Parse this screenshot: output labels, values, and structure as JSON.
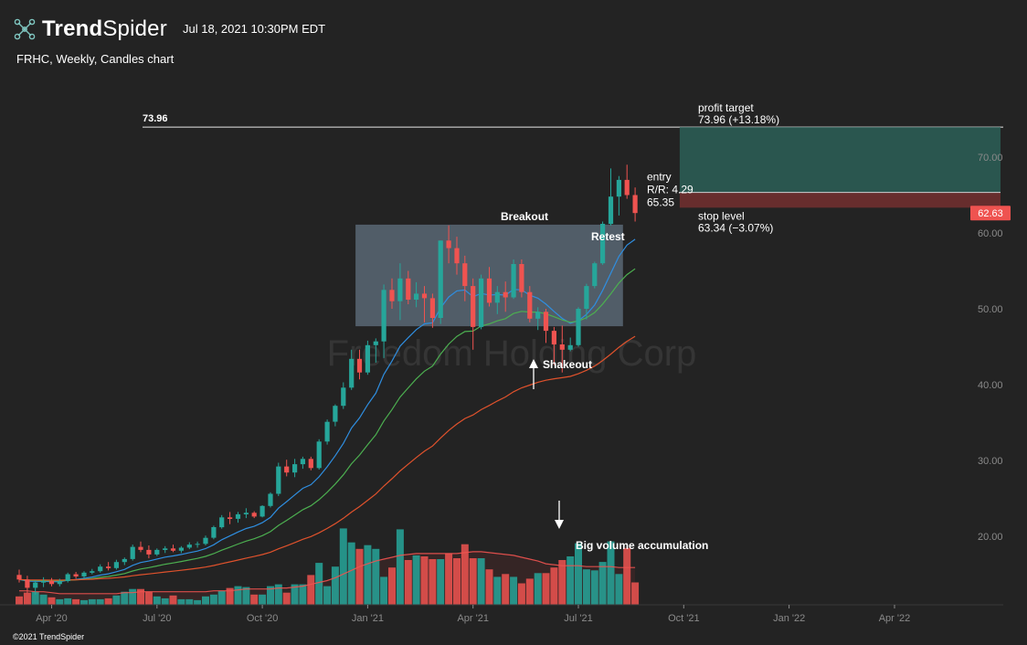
{
  "header": {
    "logo_icon": "network-nodes-icon",
    "brand_trend": "Trend",
    "brand_spider": "Spider",
    "timestamp": "Jul 18, 2021 10:30PM EDT",
    "subtitle": "FRHC, Weekly, Candles chart"
  },
  "watermark": "Freedom Holding Corp",
  "footer": {
    "copyright": "©2021 TrendSpider"
  },
  "colors": {
    "background": "#232323",
    "up": "#26a69a",
    "down": "#ef5350",
    "ema_fast": "#2f8ee0",
    "ema_mid": "#4caf50",
    "ema_slow": "#e0522c",
    "zone": "#8aa4bc",
    "profit_zone": "#2b5f57",
    "stop_zone": "#6b2e2e"
  },
  "chart_data": {
    "type": "candlestick",
    "symbol": "FRHC",
    "interval": "Weekly",
    "y_axis": {
      "ylim": [
        11.5,
        80
      ],
      "ticks": [
        "20.00",
        "30.00",
        "40.00",
        "50.00",
        "60.00",
        "70.00"
      ],
      "tick_values": [
        20,
        30,
        40,
        50,
        60,
        70
      ],
      "position": "right"
    },
    "x_axis": {
      "first_week": "2020-03-02",
      "last_visible_week": "2022-06-06",
      "tick_labels": [
        "Apr '20",
        "Jul '20",
        "Oct '20",
        "Jan '21",
        "Apr '21",
        "Jul '21",
        "Oct '21",
        "Jan '22",
        "Apr '22"
      ],
      "tick_weeks": [
        4,
        17,
        30,
        43,
        56,
        69,
        82,
        95,
        108
      ]
    },
    "candles": [
      {
        "o": 14.9,
        "h": 15.6,
        "l": 13.9,
        "c": 14.3
      },
      {
        "o": 14.3,
        "h": 14.8,
        "l": 12.5,
        "c": 13.2
      },
      {
        "o": 13.2,
        "h": 14.2,
        "l": 12.3,
        "c": 13.9
      },
      {
        "o": 13.9,
        "h": 14.6,
        "l": 13.3,
        "c": 14.1
      },
      {
        "o": 14.1,
        "h": 14.5,
        "l": 13.4,
        "c": 13.7
      },
      {
        "o": 13.7,
        "h": 14.4,
        "l": 13.4,
        "c": 14.1
      },
      {
        "o": 14.1,
        "h": 15.2,
        "l": 13.9,
        "c": 15.0
      },
      {
        "o": 15.0,
        "h": 15.3,
        "l": 14.4,
        "c": 14.7
      },
      {
        "o": 14.7,
        "h": 15.4,
        "l": 14.5,
        "c": 15.2
      },
      {
        "o": 15.2,
        "h": 15.7,
        "l": 15.0,
        "c": 15.4
      },
      {
        "o": 15.4,
        "h": 16.3,
        "l": 15.2,
        "c": 16.0
      },
      {
        "o": 16.0,
        "h": 16.6,
        "l": 15.5,
        "c": 15.8
      },
      {
        "o": 15.8,
        "h": 16.9,
        "l": 15.6,
        "c": 16.6
      },
      {
        "o": 16.6,
        "h": 17.2,
        "l": 16.2,
        "c": 17.0
      },
      {
        "o": 17.0,
        "h": 18.9,
        "l": 16.8,
        "c": 18.6
      },
      {
        "o": 18.6,
        "h": 19.3,
        "l": 17.9,
        "c": 18.2
      },
      {
        "o": 18.2,
        "h": 18.8,
        "l": 17.1,
        "c": 17.6
      },
      {
        "o": 17.6,
        "h": 18.4,
        "l": 17.4,
        "c": 18.2
      },
      {
        "o": 18.2,
        "h": 18.7,
        "l": 17.8,
        "c": 18.4
      },
      {
        "o": 18.4,
        "h": 18.9,
        "l": 17.9,
        "c": 18.1
      },
      {
        "o": 18.1,
        "h": 18.7,
        "l": 17.8,
        "c": 18.5
      },
      {
        "o": 18.5,
        "h": 19.2,
        "l": 18.3,
        "c": 18.9
      },
      {
        "o": 18.9,
        "h": 19.3,
        "l": 18.5,
        "c": 19.0
      },
      {
        "o": 19.0,
        "h": 20.1,
        "l": 18.8,
        "c": 19.8
      },
      {
        "o": 19.8,
        "h": 21.4,
        "l": 19.6,
        "c": 21.2
      },
      {
        "o": 21.2,
        "h": 22.8,
        "l": 21.0,
        "c": 22.5
      },
      {
        "o": 22.5,
        "h": 23.2,
        "l": 21.6,
        "c": 22.3
      },
      {
        "o": 22.3,
        "h": 23.2,
        "l": 21.8,
        "c": 22.9
      },
      {
        "o": 22.9,
        "h": 23.7,
        "l": 22.4,
        "c": 23.1
      },
      {
        "o": 23.1,
        "h": 23.3,
        "l": 22.4,
        "c": 22.6
      },
      {
        "o": 22.6,
        "h": 24.1,
        "l": 22.5,
        "c": 24.0
      },
      {
        "o": 24.0,
        "h": 25.8,
        "l": 23.8,
        "c": 25.6
      },
      {
        "o": 25.6,
        "h": 29.7,
        "l": 25.3,
        "c": 29.2
      },
      {
        "o": 29.2,
        "h": 30.1,
        "l": 27.9,
        "c": 28.4
      },
      {
        "o": 28.4,
        "h": 30.2,
        "l": 27.8,
        "c": 29.5
      },
      {
        "o": 29.5,
        "h": 30.5,
        "l": 28.9,
        "c": 30.2
      },
      {
        "o": 30.2,
        "h": 30.5,
        "l": 28.7,
        "c": 29.0
      },
      {
        "o": 29.0,
        "h": 32.8,
        "l": 28.8,
        "c": 32.5
      },
      {
        "o": 32.5,
        "h": 35.4,
        "l": 32.1,
        "c": 35.1
      },
      {
        "o": 35.1,
        "h": 37.4,
        "l": 34.5,
        "c": 37.2
      },
      {
        "o": 37.2,
        "h": 40.3,
        "l": 36.8,
        "c": 39.6
      },
      {
        "o": 39.6,
        "h": 44.6,
        "l": 39.3,
        "c": 43.4
      },
      {
        "o": 43.4,
        "h": 44.6,
        "l": 40.7,
        "c": 41.6
      },
      {
        "o": 41.6,
        "h": 45.8,
        "l": 41.3,
        "c": 45.2
      },
      {
        "o": 45.2,
        "h": 46.1,
        "l": 42.9,
        "c": 45.7
      },
      {
        "o": 45.7,
        "h": 53.2,
        "l": 43.5,
        "c": 52.5
      },
      {
        "o": 52.5,
        "h": 54.0,
        "l": 50.0,
        "c": 51.0
      },
      {
        "o": 51.0,
        "h": 56.0,
        "l": 48.5,
        "c": 54.0
      },
      {
        "o": 54.0,
        "h": 55.0,
        "l": 50.6,
        "c": 51.2
      },
      {
        "o": 51.2,
        "h": 53.5,
        "l": 50.2,
        "c": 52.0
      },
      {
        "o": 52.0,
        "h": 53.0,
        "l": 48.2,
        "c": 51.4
      },
      {
        "o": 51.4,
        "h": 52.0,
        "l": 47.5,
        "c": 48.8
      },
      {
        "o": 48.8,
        "h": 59.0,
        "l": 48.0,
        "c": 59.0
      },
      {
        "o": 59.0,
        "h": 61.0,
        "l": 56.0,
        "c": 58.0
      },
      {
        "o": 58.0,
        "h": 59.5,
        "l": 54.5,
        "c": 56.0
      },
      {
        "o": 56.0,
        "h": 57.0,
        "l": 51.0,
        "c": 53.0
      },
      {
        "o": 53.0,
        "h": 54.0,
        "l": 44.6,
        "c": 47.6
      },
      {
        "o": 47.6,
        "h": 54.5,
        "l": 47.3,
        "c": 54.0
      },
      {
        "o": 54.0,
        "h": 55.5,
        "l": 50.3,
        "c": 50.8
      },
      {
        "o": 50.8,
        "h": 53.0,
        "l": 49.3,
        "c": 52.2
      },
      {
        "o": 52.2,
        "h": 53.6,
        "l": 49.6,
        "c": 51.5
      },
      {
        "o": 51.5,
        "h": 56.5,
        "l": 51.3,
        "c": 55.9
      },
      {
        "o": 55.9,
        "h": 56.5,
        "l": 51.5,
        "c": 52.2
      },
      {
        "o": 52.2,
        "h": 53.0,
        "l": 48.2,
        "c": 48.7
      },
      {
        "o": 48.7,
        "h": 50.2,
        "l": 47.2,
        "c": 49.6
      },
      {
        "o": 49.6,
        "h": 50.0,
        "l": 45.5,
        "c": 47.1
      },
      {
        "o": 47.1,
        "h": 47.6,
        "l": 42.6,
        "c": 45.3
      },
      {
        "o": 45.3,
        "h": 47.8,
        "l": 41.6,
        "c": 44.6
      },
      {
        "o": 44.6,
        "h": 46.2,
        "l": 44.4,
        "c": 45.2
      },
      {
        "o": 45.2,
        "h": 50.2,
        "l": 45.0,
        "c": 50.0
      },
      {
        "o": 50.0,
        "h": 53.3,
        "l": 48.6,
        "c": 53.0
      },
      {
        "o": 53.0,
        "h": 56.2,
        "l": 52.7,
        "c": 56.0
      },
      {
        "o": 56.0,
        "h": 61.5,
        "l": 55.8,
        "c": 61.2
      },
      {
        "o": 61.2,
        "h": 68.5,
        "l": 61.0,
        "c": 64.8
      },
      {
        "o": 64.8,
        "h": 67.5,
        "l": 62.3,
        "c": 67.0
      },
      {
        "o": 67.0,
        "h": 69.0,
        "l": 64.5,
        "c": 65.0
      },
      {
        "o": 65.0,
        "h": 66.0,
        "l": 61.5,
        "c": 62.63
      }
    ],
    "volume_levels": [
      0.09,
      0.13,
      0.14,
      0.11,
      0.08,
      0.06,
      0.07,
      0.06,
      0.05,
      0.06,
      0.06,
      0.07,
      0.1,
      0.14,
      0.17,
      0.17,
      0.14,
      0.09,
      0.07,
      0.1,
      0.06,
      0.06,
      0.05,
      0.09,
      0.11,
      0.15,
      0.18,
      0.2,
      0.19,
      0.11,
      0.11,
      0.2,
      0.22,
      0.13,
      0.22,
      0.22,
      0.32,
      0.45,
      0.2,
      0.41,
      0.82,
      0.67,
      0.6,
      0.64,
      0.6,
      0.3,
      0.4,
      0.81,
      0.48,
      0.53,
      0.52,
      0.49,
      0.49,
      0.55,
      0.5,
      0.65,
      0.5,
      0.5,
      0.38,
      0.3,
      0.33,
      0.3,
      0.23,
      0.28,
      0.34,
      0.34,
      0.4,
      0.48,
      0.52,
      0.66,
      0.38,
      0.37,
      0.46,
      0.68,
      0.33,
      0.61,
      0.24
    ],
    "volume_ma": [
      0.15,
      0.15,
      0.14,
      0.14,
      0.13,
      0.12,
      0.12,
      0.12,
      0.12,
      0.12,
      0.12,
      0.12,
      0.12,
      0.13,
      0.13,
      0.14,
      0.14,
      0.14,
      0.14,
      0.14,
      0.14,
      0.14,
      0.14,
      0.14,
      0.15,
      0.15,
      0.15,
      0.16,
      0.17,
      0.17,
      0.17,
      0.17,
      0.18,
      0.18,
      0.19,
      0.2,
      0.22,
      0.24,
      0.26,
      0.29,
      0.33,
      0.37,
      0.41,
      0.44,
      0.47,
      0.49,
      0.51,
      0.53,
      0.54,
      0.55,
      0.55,
      0.55,
      0.55,
      0.55,
      0.55,
      0.56,
      0.57,
      0.57,
      0.56,
      0.55,
      0.54,
      0.53,
      0.51,
      0.49,
      0.47,
      0.44,
      0.43,
      0.42,
      0.42,
      0.42,
      0.41,
      0.41,
      0.41,
      0.41,
      0.4,
      0.4,
      0.4
    ],
    "overlays": [
      {
        "name": "ema-fast",
        "period_weeks": 10,
        "color": "#2f8ee0"
      },
      {
        "name": "ema-mid",
        "period_weeks": 20,
        "color": "#4caf50"
      },
      {
        "name": "ema-slow",
        "period_weeks": 50,
        "color": "#e0522c"
      }
    ],
    "price_line": {
      "value": 73.96,
      "label": "73.96"
    },
    "consolidation_zone": {
      "week_start": 41.5,
      "week_end": 74.5,
      "price_low": 47.7,
      "price_high": 61.1
    },
    "trade_setup": {
      "week_start": 81.5,
      "week_end": 100.5,
      "target": 73.96,
      "entry": 65.35,
      "stop": 63.34,
      "profit_label": "profit target",
      "profit_value": "73.96 (+13.18%)",
      "entry_label": "entry",
      "rr_label": "R/R: 4.29",
      "entry_value": "65.35",
      "stop_label": "stop level",
      "stop_value": "63.34 (−3.07%)"
    },
    "last_price": {
      "value": 62.63,
      "label": "62.63"
    },
    "annotations": {
      "breakout": "Breakout",
      "retest": "Retest",
      "shakeout": "Shakeout",
      "big_volume": "Big volume accumulation"
    }
  }
}
